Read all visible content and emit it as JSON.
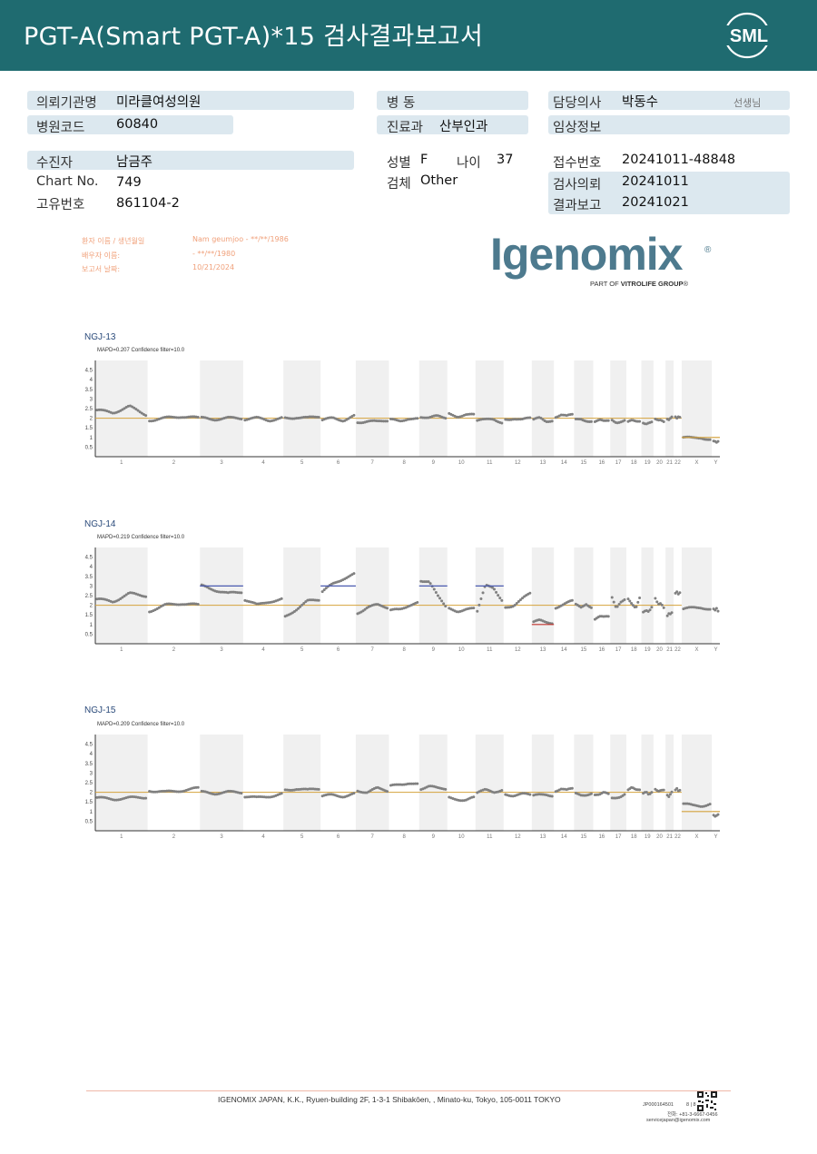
{
  "header": {
    "title": "PGT-A(Smart  PGT-A)*15 검사결과보고서",
    "logo_text": "SML"
  },
  "info": {
    "institution_label": "의뢰기관명",
    "institution_value": "미라클여성의원",
    "hospital_code_label": "병원코드",
    "hospital_code_value": "60840",
    "ward_label": "병  동",
    "ward_value": "",
    "department_label": "진료과",
    "department_value": "산부인과",
    "doctor_label": "담당의사",
    "doctor_value": "박동수",
    "doctor_suffix": "선생님",
    "clinical_info_label": "임상정보",
    "clinical_info_value": "",
    "patient_label": "수진자",
    "patient_value": "남금주",
    "chart_no_label": "Chart No.",
    "chart_no_value": "749",
    "unique_no_label": "고유번호",
    "unique_no_value": "861104-2",
    "sex_label": "성별",
    "sex_value": "F",
    "age_label": "나이",
    "age_value": "37",
    "specimen_label": "검체",
    "specimen_value": "Other",
    "receipt_no_label": "접수번호",
    "receipt_no_value": "20241011-48848",
    "request_label": "검사의뢰",
    "request_value": "20241011",
    "report_label": "결과보고",
    "report_value": "20241021"
  },
  "lab_meta": {
    "patient_name_label": "환자 이름 / 생년월일",
    "patient_name_value": "Nam geumjoo - **/**/1986",
    "spouse_label": "배우자 이름:",
    "spouse_value": "- **/**/1980",
    "report_date_label": "보고서 날짜:",
    "report_date_value": "10/21/2024"
  },
  "igenomix": {
    "name": "Igenomix",
    "registered": "®",
    "tagline_prefix": "PART OF ",
    "tagline_brand": "VITROLIFE GROUP",
    "tagline_tm": "®",
    "color": "#4d7a8e"
  },
  "chart_data": [
    {
      "type": "scatter",
      "title": "NGJ-13",
      "subtitle": "MAPD=0.207 Confidence filter=10.0",
      "yticks": [
        "4.5",
        "4",
        "3.5",
        "3",
        "2.5",
        "2",
        "1.5",
        "1",
        "0.5"
      ],
      "categories": [
        "1",
        "2",
        "3",
        "4",
        "5",
        "6",
        "7",
        "8",
        "9",
        "10",
        "11",
        "12",
        "13",
        "14",
        "15",
        "16",
        "17",
        "18",
        "19",
        "20",
        "21",
        "22",
        "X",
        "Y"
      ],
      "baseline": 2,
      "segments": [
        {
          "chr": "1",
          "values": [
            2.4,
            2.3,
            2.6,
            2.2
          ]
        },
        {
          "chr": "2",
          "values": [
            1.9,
            2.0,
            2.1,
            2.0
          ]
        },
        {
          "chr": "3",
          "values": [
            2.0,
            1.95,
            2.0,
            2.0
          ]
        },
        {
          "chr": "4",
          "values": [
            1.95,
            2.0,
            1.9,
            2.0
          ]
        },
        {
          "chr": "5",
          "values": [
            2.0,
            2.05,
            2.0,
            2.1
          ]
        },
        {
          "chr": "6",
          "values": [
            1.9,
            2.0,
            1.9,
            2.1
          ]
        },
        {
          "chr": "7",
          "values": [
            1.8,
            1.85,
            1.8,
            1.9
          ]
        },
        {
          "chr": "8",
          "values": [
            1.9,
            1.85,
            2.0,
            1.95
          ]
        },
        {
          "chr": "9",
          "values": [
            2.1,
            2.0,
            2.1,
            2.05
          ]
        },
        {
          "chr": "10",
          "values": [
            2.2,
            2.1,
            2.2,
            2.15
          ]
        },
        {
          "chr": "11",
          "values": [
            1.9,
            1.9,
            1.95,
            1.8
          ]
        },
        {
          "chr": "12",
          "values": [
            1.95,
            2.0,
            1.9,
            2.0
          ]
        },
        {
          "chr": "13",
          "values": [
            1.9,
            2.0,
            1.85,
            1.9
          ]
        },
        {
          "chr": "14",
          "values": [
            2.1,
            2.2,
            2.1,
            2.15
          ]
        },
        {
          "chr": "15",
          "values": [
            1.9,
            1.95,
            1.9,
            1.85
          ]
        },
        {
          "chr": "16",
          "values": [
            1.85,
            1.9,
            1.8,
            1.85
          ]
        },
        {
          "chr": "17",
          "values": [
            1.9,
            1.8,
            1.85,
            1.9
          ]
        },
        {
          "chr": "18",
          "values": [
            1.8,
            1.85,
            1.8,
            1.85
          ]
        },
        {
          "chr": "19",
          "values": [
            1.8,
            1.75,
            1.8,
            1.8
          ]
        },
        {
          "chr": "20",
          "values": [
            1.9,
            1.85,
            1.9,
            1.85
          ]
        },
        {
          "chr": "21",
          "values": [
            2.0,
            1.95,
            2.0,
            2.05
          ]
        },
        {
          "chr": "22",
          "values": [
            2.05,
            2.0,
            2.1,
            2.1
          ]
        },
        {
          "chr": "X",
          "values": [
            1.0,
            0.95,
            1.0,
            0.9
          ]
        },
        {
          "chr": "Y",
          "values": [
            0.85,
            0.85,
            0.8,
            0.85
          ]
        }
      ],
      "calls": [
        {
          "chr": "X",
          "value": 1,
          "color": "#d4a23c"
        },
        {
          "chr": "Y",
          "value": 1,
          "color": "#d4a23c"
        }
      ]
    },
    {
      "type": "scatter",
      "title": "NGJ-14",
      "subtitle": "MAPD=0.219 Confidence filter=10.0",
      "yticks": [
        "4.5",
        "4",
        "3.5",
        "3",
        "2.5",
        "2",
        "1.5",
        "1",
        "0.5"
      ],
      "categories": [
        "1",
        "2",
        "3",
        "4",
        "5",
        "6",
        "7",
        "8",
        "9",
        "10",
        "11",
        "12",
        "13",
        "14",
        "15",
        "16",
        "17",
        "18",
        "19",
        "20",
        "21",
        "22",
        "X",
        "Y"
      ],
      "baseline": 2,
      "segments": [
        {
          "chr": "1",
          "values": [
            2.3,
            2.2,
            2.6,
            2.5
          ]
        },
        {
          "chr": "2",
          "values": [
            1.7,
            2.0,
            2.1,
            2.0
          ]
        },
        {
          "chr": "3",
          "values": [
            3.0,
            2.8,
            2.6,
            2.7
          ]
        },
        {
          "chr": "4",
          "values": [
            2.3,
            2.0,
            2.2,
            2.3
          ]
        },
        {
          "chr": "5",
          "values": [
            1.4,
            1.8,
            2.2,
            2.3
          ]
        },
        {
          "chr": "6",
          "values": [
            2.7,
            3.1,
            3.4,
            3.6
          ]
        },
        {
          "chr": "7",
          "values": [
            1.6,
            1.9,
            2.0,
            1.9
          ]
        },
        {
          "chr": "8",
          "values": [
            1.7,
            1.8,
            2.0,
            2.1
          ]
        },
        {
          "chr": "9",
          "values": [
            3.3,
            3.2,
            2.5,
            2.0
          ]
        },
        {
          "chr": "10",
          "values": [
            1.8,
            1.7,
            1.8,
            1.8
          ]
        },
        {
          "chr": "11",
          "values": [
            1.7,
            3.0,
            2.9,
            2.3
          ]
        },
        {
          "chr": "12",
          "values": [
            1.9,
            2.0,
            2.3,
            2.6
          ]
        },
        {
          "chr": "13",
          "values": [
            1.1,
            1.2,
            1.15,
            1.1
          ]
        },
        {
          "chr": "14",
          "values": [
            1.9,
            2.0,
            2.1,
            2.2
          ]
        },
        {
          "chr": "15",
          "values": [
            2.0,
            1.9,
            2.1,
            1.9
          ]
        },
        {
          "chr": "16",
          "values": [
            1.3,
            1.4,
            1.35,
            1.4
          ]
        },
        {
          "chr": "17",
          "values": [
            2.4,
            1.9,
            2.2,
            2.3
          ]
        },
        {
          "chr": "18",
          "values": [
            2.3,
            2.0,
            1.8,
            2.4
          ]
        },
        {
          "chr": "19",
          "values": [
            1.7,
            1.8,
            1.7,
            1.9
          ]
        },
        {
          "chr": "20",
          "values": [
            2.3,
            2.0,
            2.1,
            1.9
          ]
        },
        {
          "chr": "21",
          "values": [
            1.5,
            1.6,
            1.55,
            1.6
          ]
        },
        {
          "chr": "22",
          "values": [
            2.6,
            2.7,
            2.6,
            2.7
          ]
        },
        {
          "chr": "X",
          "values": [
            1.8,
            1.85,
            1.9,
            1.8
          ]
        },
        {
          "chr": "Y",
          "values": [
            1.85,
            1.8,
            1.9,
            1.75
          ]
        }
      ],
      "calls": [
        {
          "chr": "3",
          "value": 3,
          "color": "#4a5ab0"
        },
        {
          "chr": "6",
          "value": 3,
          "color": "#4a5ab0"
        },
        {
          "chr": "9",
          "value": 3,
          "color": "#4a5ab0"
        },
        {
          "chr": "11",
          "value": 3,
          "color": "#4a5ab0"
        },
        {
          "chr": "13",
          "value": 1,
          "color": "#c0302a"
        }
      ]
    },
    {
      "type": "scatter",
      "title": "NGJ-15",
      "subtitle": "MAPD=0.209 Confidence filter=10.0",
      "yticks": [
        "4.5",
        "4",
        "3.5",
        "3",
        "2.5",
        "2",
        "1.5",
        "1",
        "0.5"
      ],
      "categories": [
        "1",
        "2",
        "3",
        "4",
        "5",
        "6",
        "7",
        "8",
        "9",
        "10",
        "11",
        "12",
        "13",
        "14",
        "15",
        "16",
        "17",
        "18",
        "19",
        "20",
        "21",
        "22",
        "X",
        "Y"
      ],
      "baseline": 2,
      "segments": [
        {
          "chr": "1",
          "values": [
            1.7,
            1.65,
            1.7,
            1.75
          ]
        },
        {
          "chr": "2",
          "values": [
            2.1,
            2.0,
            2.1,
            2.2
          ]
        },
        {
          "chr": "3",
          "values": [
            2.0,
            1.95,
            2.0,
            2.0
          ]
        },
        {
          "chr": "4",
          "values": [
            1.8,
            1.7,
            1.8,
            1.9
          ]
        },
        {
          "chr": "5",
          "values": [
            2.1,
            2.2,
            2.1,
            2.2
          ]
        },
        {
          "chr": "6",
          "values": [
            1.8,
            1.85,
            1.8,
            1.9
          ]
        },
        {
          "chr": "7",
          "values": [
            2.1,
            2.0,
            2.2,
            2.1
          ]
        },
        {
          "chr": "8",
          "values": [
            2.3,
            2.4,
            2.5,
            2.4
          ]
        },
        {
          "chr": "9",
          "values": [
            2.2,
            2.3,
            2.2,
            2.2
          ]
        },
        {
          "chr": "10",
          "values": [
            1.7,
            1.65,
            1.6,
            1.7
          ]
        },
        {
          "chr": "11",
          "values": [
            2.0,
            2.1,
            2.0,
            2.15
          ]
        },
        {
          "chr": "12",
          "values": [
            1.9,
            1.85,
            1.9,
            1.85
          ]
        },
        {
          "chr": "13",
          "values": [
            1.8,
            1.85,
            1.9,
            1.85
          ]
        },
        {
          "chr": "14",
          "values": [
            2.1,
            2.2,
            2.1,
            2.15
          ]
        },
        {
          "chr": "15",
          "values": [
            1.9,
            1.85,
            1.9,
            1.95
          ]
        },
        {
          "chr": "16",
          "values": [
            1.9,
            1.85,
            1.95,
            1.9
          ]
        },
        {
          "chr": "17",
          "values": [
            1.7,
            1.75,
            1.8,
            1.9
          ]
        },
        {
          "chr": "18",
          "values": [
            2.1,
            2.2,
            2.1,
            2.15
          ]
        },
        {
          "chr": "19",
          "values": [
            2.0,
            2.1,
            1.9,
            2.0
          ]
        },
        {
          "chr": "20",
          "values": [
            2.1,
            2.0,
            2.1,
            2.15
          ]
        },
        {
          "chr": "21",
          "values": [
            1.9,
            1.8,
            1.9,
            2.0
          ]
        },
        {
          "chr": "22",
          "values": [
            2.1,
            2.2,
            2.1,
            2.15
          ]
        },
        {
          "chr": "X",
          "values": [
            1.4,
            1.3,
            1.3,
            1.4
          ]
        },
        {
          "chr": "Y",
          "values": [
            0.85,
            0.8,
            0.85,
            0.9
          ]
        }
      ],
      "calls": [
        {
          "chr": "X",
          "value": 1,
          "color": "#d4a23c"
        },
        {
          "chr": "Y",
          "value": 1,
          "color": "#d4a23c"
        }
      ]
    }
  ],
  "footer": {
    "address": "IGENOMIX JAPAN, K.K., Ryuen-building 2F, 1-3-1 Shibakōen, , Minato-ku, Tokyo, 105-0011 TOKYO",
    "doc_code": "JP000164501",
    "page": "8 | 8",
    "phone": "전화: +81-3-6667-0456",
    "email": "servicejapan@igenomix.com"
  },
  "colors": {
    "header_bg": "#1f6b70",
    "pill_bg": "#dce8ef",
    "baseline": "#d4a23c",
    "dots": "#808080",
    "band": "#f0f0f0"
  }
}
